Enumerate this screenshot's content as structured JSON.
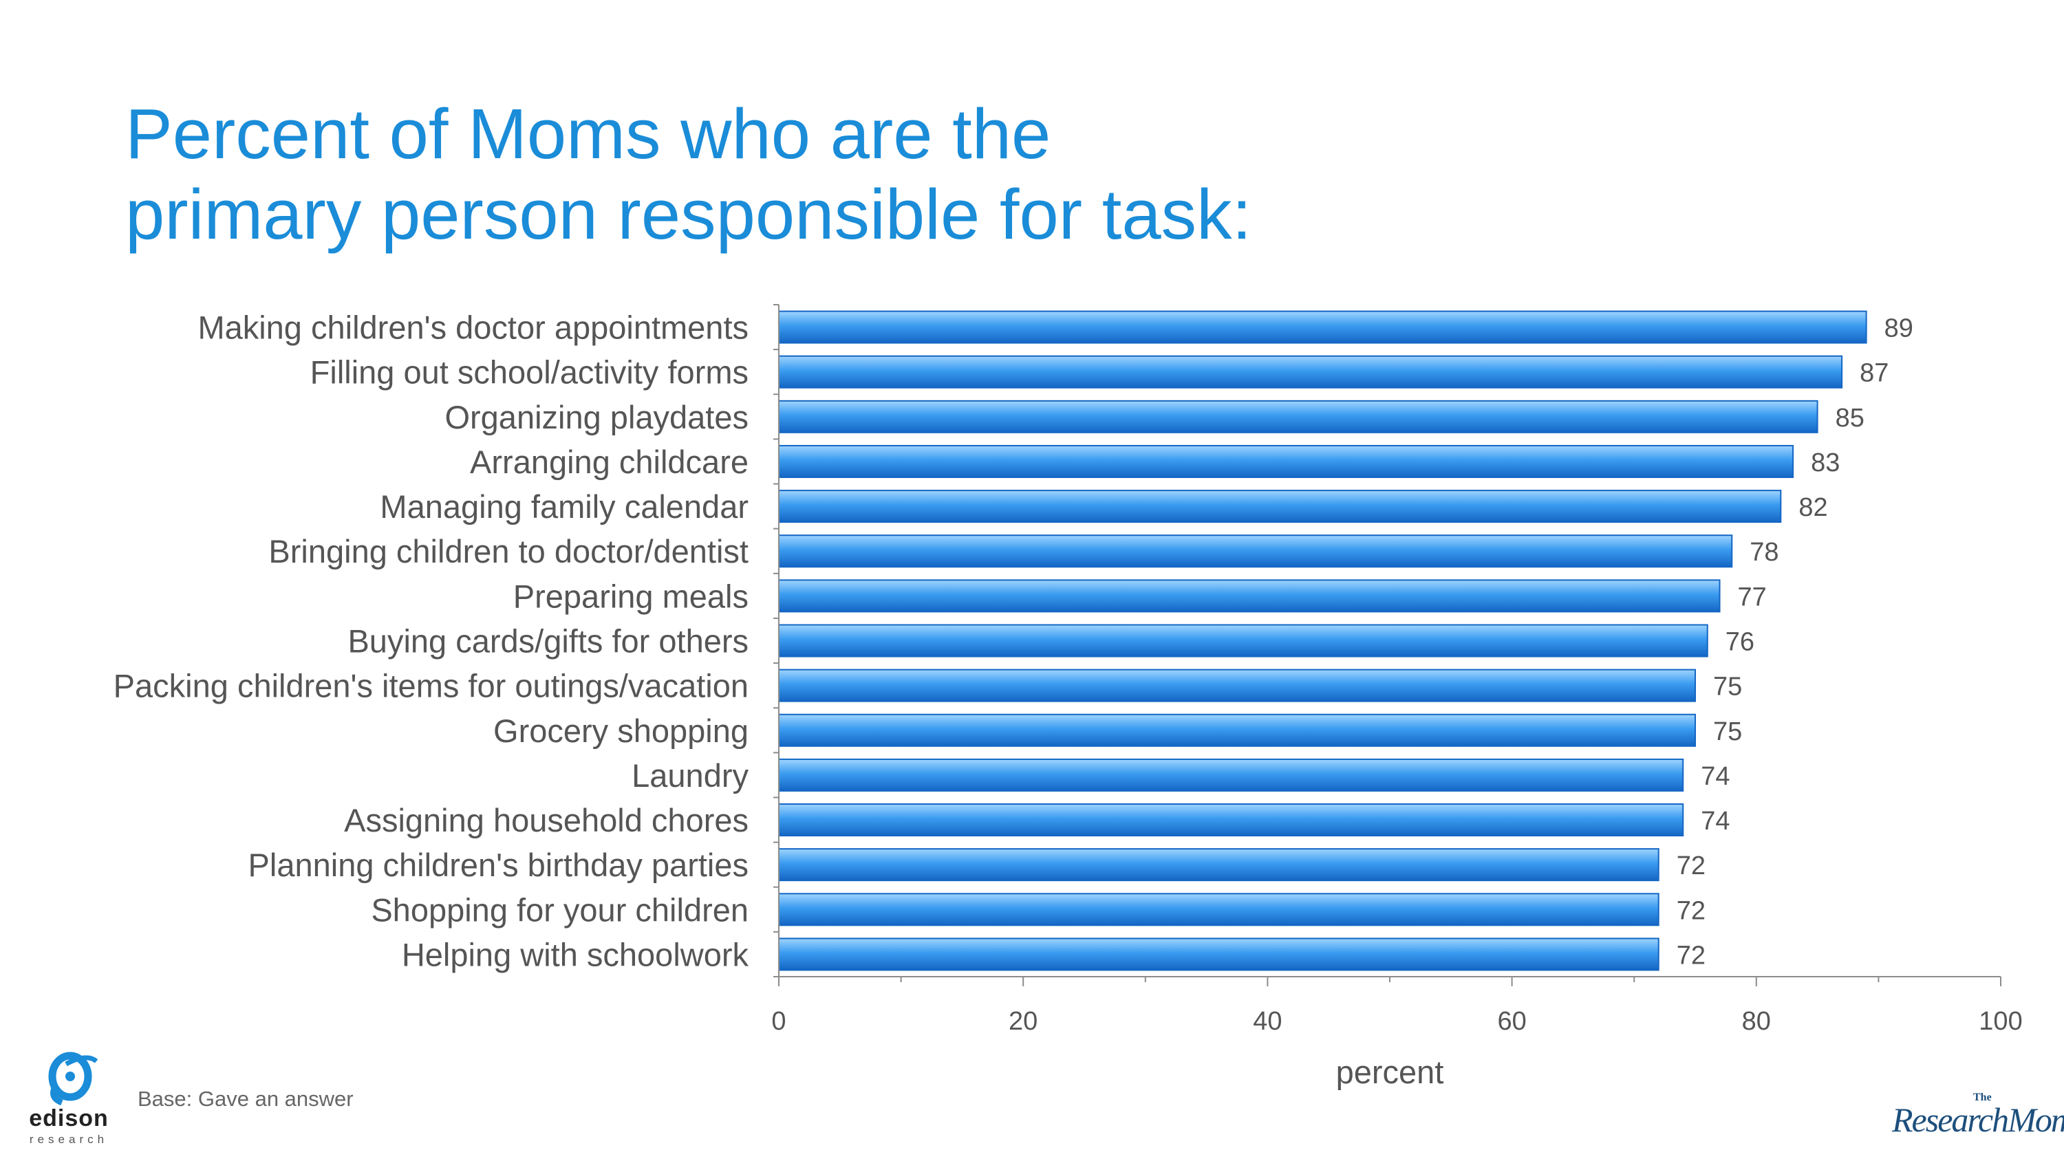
{
  "title": {
    "line1": "Percent of Moms who are the",
    "line2": "primary person responsible for task:"
  },
  "footnote": "Base: Gave an answer",
  "logos": {
    "edison_word": "edison",
    "edison_sub": "research",
    "researchmoms_the": "The",
    "researchmoms_main": "ResearchMoms"
  },
  "colors": {
    "title": "#1a8cd8",
    "bar_light": "#9fd4ff",
    "bar_mid": "#3b9cf0",
    "bar_dark": "#1466c4",
    "label_text": "#555555",
    "axis": "#8c8c8c"
  },
  "chart_data": {
    "type": "bar",
    "orientation": "horizontal",
    "categories": [
      "Making children's doctor appointments",
      "Filling out school/activity forms",
      "Organizing playdates",
      "Arranging childcare",
      "Managing family calendar",
      "Bringing children to doctor/dentist",
      "Preparing meals",
      "Buying cards/gifts for others",
      "Packing children's items for outings/vacation",
      "Grocery shopping",
      "Laundry",
      "Assigning household chores",
      "Planning children's birthday parties",
      "Shopping for your children",
      "Helping with schoolwork"
    ],
    "values": [
      89,
      87,
      85,
      83,
      82,
      78,
      77,
      76,
      75,
      75,
      74,
      74,
      72,
      72,
      72
    ],
    "xlabel": "percent",
    "xlim": [
      0,
      100
    ],
    "xticks": [
      0,
      20,
      40,
      60,
      80,
      100
    ],
    "grid": false,
    "data_labels": true
  }
}
